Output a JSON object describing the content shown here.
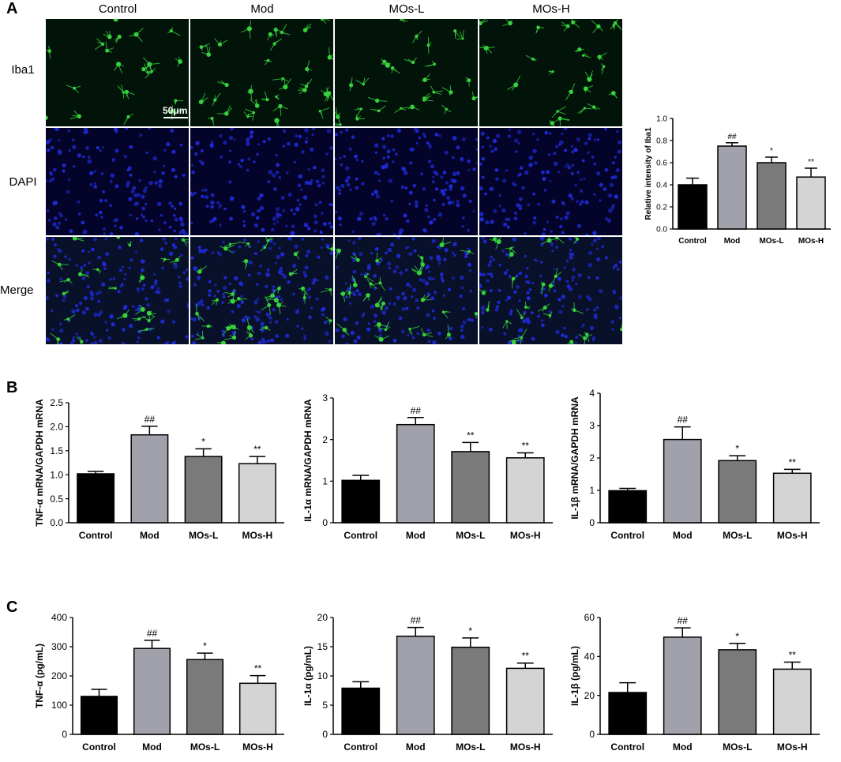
{
  "panels": {
    "a": "A",
    "b": "B",
    "c": "C"
  },
  "micrographs": {
    "columns": [
      "Control",
      "Mod",
      "MOs-L",
      "MOs-H"
    ],
    "rows": [
      "Iba1",
      "DAPI",
      "Merge"
    ],
    "scale_bar": "50μm",
    "colors": {
      "background": "#02130a",
      "dapi_background": "#04042a",
      "iba1": "#36d23c",
      "dapi": "#1f2bd8"
    }
  },
  "colors": {
    "Control": "#000000",
    "Mod": "#a1a1ab",
    "MOs-L": "#7a7a7a",
    "MOs-H": "#d4d4d4"
  },
  "chart_data": [
    {
      "id": "iba1",
      "type": "bar",
      "categories": [
        "Control",
        "Mod",
        "MOs-L",
        "MOs-H"
      ],
      "values": [
        0.4,
        0.75,
        0.6,
        0.47
      ],
      "errors": [
        0.06,
        0.03,
        0.05,
        0.08
      ],
      "annotations": [
        "",
        "##",
        "*",
        "**"
      ],
      "ylabel": "Relative intensity of Iba1",
      "ylim": [
        0,
        1.0
      ],
      "yticks": [
        "0.0",
        "0.2",
        "0.4",
        "0.6",
        "0.8",
        "1.0"
      ]
    },
    {
      "id": "tnf-mrna",
      "type": "bar",
      "categories": [
        "Control",
        "Mod",
        "MOs-L",
        "MOs-H"
      ],
      "values": [
        1.02,
        1.83,
        1.38,
        1.23
      ],
      "errors": [
        0.05,
        0.18,
        0.16,
        0.15
      ],
      "annotations": [
        "",
        "##",
        "*",
        "**"
      ],
      "ylabel": "TNF-α mRNA/GAPDH mRNA",
      "ylim": [
        0,
        2.5
      ],
      "yticks": [
        "0.0",
        "0.5",
        "1.0",
        "1.5",
        "2.0",
        "2.5"
      ]
    },
    {
      "id": "il1a-mrna",
      "type": "bar",
      "categories": [
        "Control",
        "Mod",
        "MOs-L",
        "MOs-H"
      ],
      "values": [
        1.02,
        2.36,
        1.71,
        1.56
      ],
      "errors": [
        0.12,
        0.17,
        0.22,
        0.12
      ],
      "annotations": [
        "",
        "##",
        "**",
        "**"
      ],
      "ylabel": "IL-1α mRNA/GAPDH mRNA",
      "ylim": [
        0,
        3
      ],
      "yticks": [
        "0",
        "1",
        "2",
        "3"
      ]
    },
    {
      "id": "il1b-mrna",
      "type": "bar",
      "categories": [
        "Control",
        "Mod",
        "MOs-L",
        "MOs-H"
      ],
      "values": [
        0.99,
        2.57,
        1.92,
        1.53
      ],
      "errors": [
        0.07,
        0.39,
        0.15,
        0.12
      ],
      "annotations": [
        "",
        "##",
        "*",
        "**"
      ],
      "ylabel": "IL-1β mRNA/GAPDH mRNA",
      "ylim": [
        0,
        4
      ],
      "yticks": [
        "0",
        "1",
        "2",
        "3",
        "4"
      ]
    },
    {
      "id": "tnf-protein",
      "type": "bar",
      "categories": [
        "Control",
        "Mod",
        "MOs-L",
        "MOs-H"
      ],
      "values": [
        130,
        294,
        256,
        175
      ],
      "errors": [
        24,
        28,
        22,
        26
      ],
      "annotations": [
        "",
        "##",
        "*",
        "**"
      ],
      "ylabel": "TNF-α (pg/mL)",
      "ylim": [
        0,
        400
      ],
      "yticks": [
        "0",
        "100",
        "200",
        "300",
        "400"
      ]
    },
    {
      "id": "il1a-protein",
      "type": "bar",
      "categories": [
        "Control",
        "Mod",
        "MOs-L",
        "MOs-H"
      ],
      "values": [
        7.9,
        16.8,
        14.9,
        11.3
      ],
      "errors": [
        1.1,
        1.5,
        1.6,
        0.9
      ],
      "annotations": [
        "",
        "##",
        "*",
        "**"
      ],
      "ylabel": "IL-1α (pg/mL)",
      "ylim": [
        0,
        20
      ],
      "yticks": [
        "0",
        "5",
        "10",
        "15",
        "20"
      ]
    },
    {
      "id": "il1b-protein",
      "type": "bar",
      "categories": [
        "Control",
        "Mod",
        "MOs-L",
        "MOs-H"
      ],
      "values": [
        21.5,
        49.9,
        43.4,
        33.5
      ],
      "errors": [
        5.0,
        4.8,
        3.3,
        3.6
      ],
      "annotations": [
        "",
        "##",
        "*",
        "**"
      ],
      "ylabel": "IL-1β (pg/mL)",
      "ylim": [
        0,
        60
      ],
      "yticks": [
        "0",
        "20",
        "40",
        "60"
      ]
    }
  ]
}
